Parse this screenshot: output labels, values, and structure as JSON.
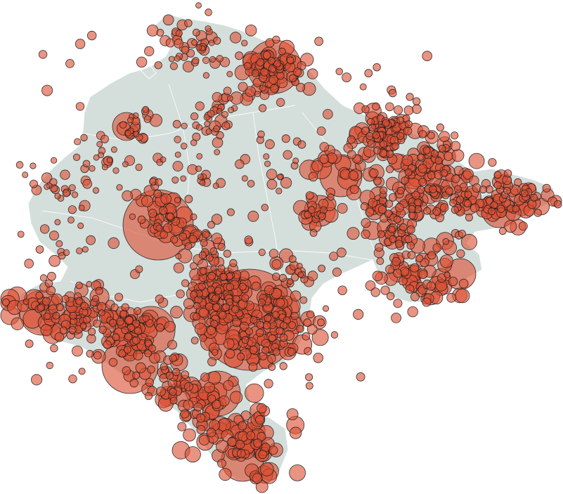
{
  "map": {
    "colors": {
      "land": "#d4dedb",
      "borders": "#ffffff",
      "bubble_fill": "#dc5035",
      "bubble_stroke": "#1d1d1d",
      "background": "#ffffff"
    },
    "legend": null,
    "title": ""
  }
}
